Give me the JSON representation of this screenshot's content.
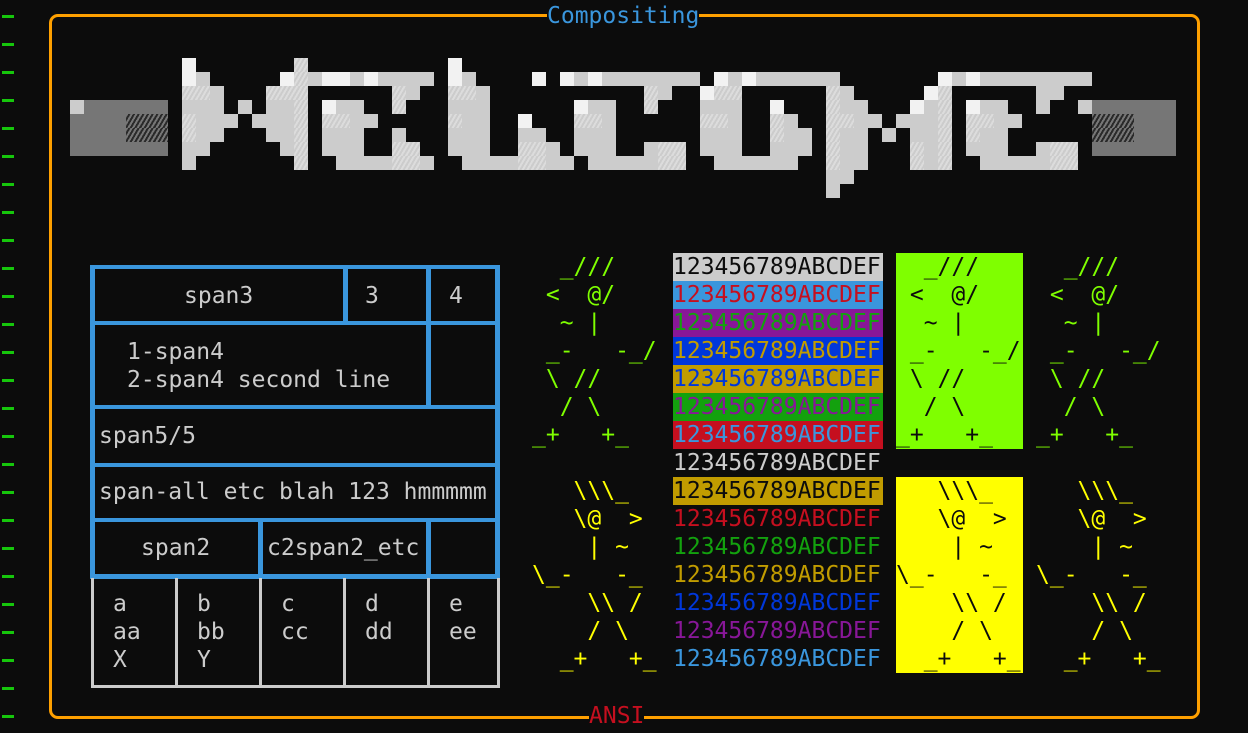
{
  "frame": {
    "title": "Compositing",
    "subtitle": "ANSI",
    "border_color": "#ffa000",
    "title_color": "#3a96dd",
    "subtitle_color": "#c50f1f"
  },
  "logo": {
    "description_icon": "block-art-logo"
  },
  "table": {
    "row1": {
      "span3": "span3",
      "c3": "3",
      "c4": "4"
    },
    "row2": {
      "line1": "1-span4",
      "line2": "2-span4 second line"
    },
    "row3": {
      "text": "span5/5"
    },
    "row4": {
      "text": "span-all etc blah 123 hmmmmm"
    },
    "row5": {
      "span2": "span2",
      "c2span2": "c2span2_etc"
    },
    "grid": [
      [
        "a",
        "aa",
        "X"
      ],
      [
        "b",
        "bb",
        "Y"
      ],
      [
        "c",
        "cc",
        ""
      ],
      [
        "d",
        "dd",
        ""
      ],
      [
        "e",
        "ee",
        ""
      ]
    ]
  },
  "color_rows": [
    {
      "text": "123456789ABCDEF",
      "fg": "#0c0c0c",
      "bg": "#cccccc"
    },
    {
      "text": "123456789ABCDEF",
      "fg": "#c50f1f",
      "bg": "#3a96dd"
    },
    {
      "text": "123456789ABCDEF",
      "fg": "#13a10e",
      "bg": "#881798"
    },
    {
      "text": "123456789ABCDEF",
      "fg": "#c19c00",
      "bg": "#0037da"
    },
    {
      "text": "123456789ABCDEF",
      "fg": "#0037da",
      "bg": "#c19c00"
    },
    {
      "text": "123456789ABCDEF",
      "fg": "#881798",
      "bg": "#13a10e"
    },
    {
      "text": "123456789ABCDEF",
      "fg": "#3a96dd",
      "bg": "#c50f1f"
    },
    {
      "text": "123456789ABCDEF",
      "fg": "#cccccc",
      "bg": ""
    },
    {
      "text": "123456789ABCDEF",
      "fg": "#0c0c0c",
      "bg": "#c19c00"
    },
    {
      "text": "123456789ABCDEF",
      "fg": "#c50f1f",
      "bg": ""
    },
    {
      "text": "123456789ABCDEF",
      "fg": "#13a10e",
      "bg": ""
    },
    {
      "text": "123456789ABCDEF",
      "fg": "#c19c00",
      "bg": ""
    },
    {
      "text": "123456789ABCDEF",
      "fg": "#0037da",
      "bg": ""
    },
    {
      "text": "123456789ABCDEF",
      "fg": "#881798",
      "bg": ""
    },
    {
      "text": "123456789ABCDEF",
      "fg": "#3a96dd",
      "bg": ""
    }
  ],
  "figures": {
    "green": {
      "color": "#7fff00",
      "box_bg": "#7fff00",
      "box_fg": "#0c0c0c",
      "lines": [
        "  _///",
        " <  @/",
        "  ~ |",
        " _-   -_/",
        " \\ //",
        "  / \\",
        "_+   +_"
      ]
    },
    "yellow": {
      "color": "#ffff00",
      "box_bg": "#ffff00",
      "box_fg": "#0c0c0c",
      "lines": [
        "   \\\\\\_",
        "   \\@  >",
        "    | ~",
        "\\_-   -_",
        "    \\\\ /",
        "    / \\",
        "  _+   +_"
      ]
    }
  },
  "gutter": {
    "marker": "-",
    "color": "#16c60c"
  }
}
